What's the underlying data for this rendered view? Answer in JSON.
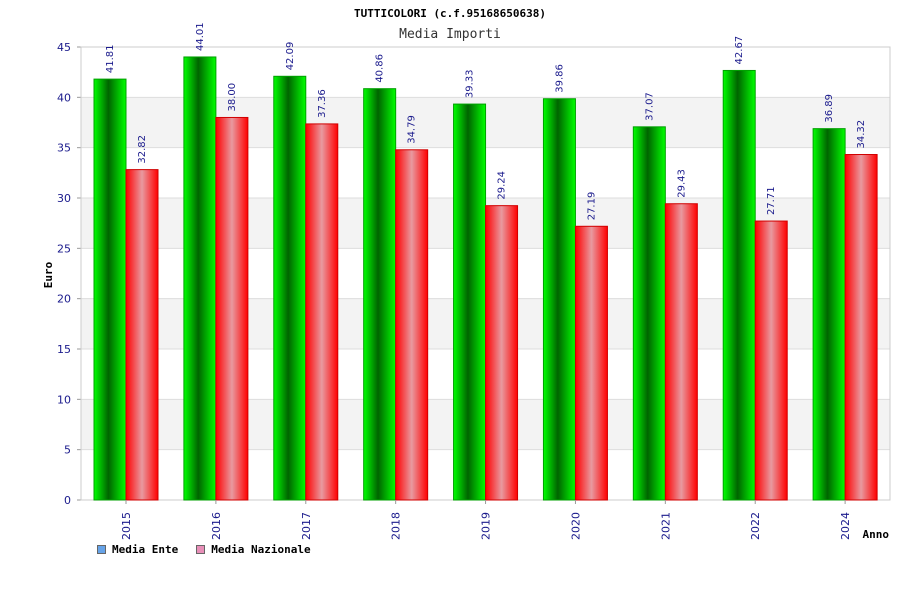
{
  "chart_data": {
    "type": "bar",
    "title": "TUTTICOLORI (c.f.95168650638)",
    "subtitle": "Media Importi",
    "xlabel": "Anno",
    "ylabel": "Euro",
    "ylim": [
      0,
      45
    ],
    "yticks": [
      "0",
      "5",
      "10",
      "15",
      "20",
      "25",
      "30",
      "35",
      "40",
      "45"
    ],
    "categories": [
      "2015",
      "2016",
      "2017",
      "2018",
      "2019",
      "2020",
      "2021",
      "2022",
      "2024"
    ],
    "series": [
      {
        "name": "Media Ente",
        "values": [
          41.81,
          44.01,
          42.09,
          40.86,
          39.33,
          39.86,
          37.07,
          42.67,
          36.89
        ],
        "labels": [
          "41.81",
          "44.01",
          "42.09",
          "40.86",
          "39.33",
          "39.86",
          "37.07",
          "42.67",
          "36.89"
        ],
        "color": "#00c800"
      },
      {
        "name": "Media Nazionale",
        "values": [
          32.82,
          38.0,
          37.36,
          34.79,
          29.24,
          27.19,
          29.43,
          27.71,
          34.32
        ],
        "labels": [
          "32.82",
          "38.00",
          "37.36",
          "34.79",
          "29.24",
          "27.19",
          "29.43",
          "27.71",
          "34.32"
        ],
        "color": "#ff0000"
      }
    ],
    "legend": [
      {
        "label": "Media Ente",
        "color": "#66a3e8"
      },
      {
        "label": "Media Nazionale",
        "color": "#e88fb8"
      }
    ],
    "legend_position": "bottom-left",
    "grid": true
  }
}
